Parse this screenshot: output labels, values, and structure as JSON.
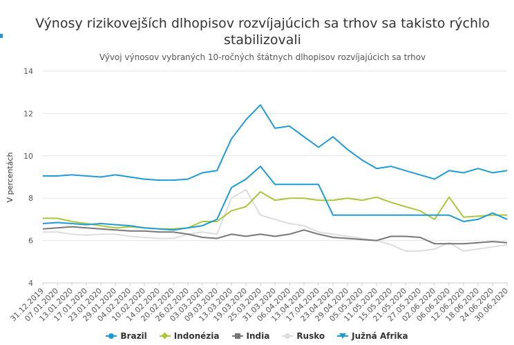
{
  "chart_data": {
    "type": "line",
    "title": "Výnosy rizikovejších dlhopisov rozvíjajúcich sa trhov sa takisto rýchlo stabilizovali",
    "subtitle": "Vývoj výnosov vybraných 10-ročných štátnych dlhopisov rozvíjajúcich sa trhov",
    "ylabel": "V percentách",
    "xlabel": "",
    "ylim": [
      4,
      14
    ],
    "yticks": [
      "4",
      "6",
      "8",
      "10",
      "12",
      "14"
    ],
    "grid": true,
    "legend_position": "bottom",
    "x": [
      "31.12.2019",
      "07.01.2020",
      "13.01.2020",
      "17.01.2020",
      "23.01.2020",
      "29.01.2020",
      "04.02.2020",
      "10.02.2020",
      "14.02.2020",
      "20.02.2020",
      "26.02.2020",
      "03.03.2020",
      "09.03.2020",
      "13.03.2020",
      "19.03.2020",
      "25.03.2020",
      "31.03.2020",
      "06.04.2020",
      "13.04.2020",
      "17.04.2020",
      "23.04.2020",
      "29.04.2020",
      "05.05.2020",
      "11.05.2020",
      "15.05.2020",
      "21.05.2020",
      "27.05.2020",
      "02.06.2020",
      "06.06.2020",
      "12.06.2020",
      "18.06.2020",
      "24.06.2020",
      "30.06.2020"
    ],
    "series": [
      {
        "name": "Brazil",
        "color": "#1e9bd7",
        "marker": "circle",
        "values": [
          6.8,
          6.85,
          6.8,
          6.75,
          6.8,
          6.75,
          6.7,
          6.6,
          6.55,
          6.5,
          6.6,
          6.7,
          7.0,
          8.5,
          8.9,
          9.5,
          8.65,
          8.65,
          8.65,
          8.65,
          7.2,
          7.2,
          7.2,
          7.2,
          7.2,
          7.2,
          7.2,
          7.2,
          7.2,
          6.9,
          7.0,
          7.3,
          7.0
        ]
      },
      {
        "name": "Indonézia",
        "color": "#a8c83a",
        "marker": "diamond",
        "values": [
          7.05,
          7.05,
          6.9,
          6.8,
          6.7,
          6.6,
          6.65,
          6.6,
          6.55,
          6.55,
          6.6,
          6.9,
          6.9,
          7.4,
          7.6,
          8.3,
          7.9,
          8.0,
          8.0,
          7.9,
          7.9,
          8.0,
          7.9,
          8.05,
          7.8,
          7.6,
          7.4,
          7.0,
          8.05,
          7.1,
          7.15,
          7.2,
          7.2
        ]
      },
      {
        "name": "India",
        "color": "#777777",
        "marker": "square",
        "values": [
          6.55,
          6.6,
          6.65,
          6.6,
          6.55,
          6.5,
          6.45,
          6.45,
          6.4,
          6.4,
          6.3,
          6.15,
          6.1,
          6.3,
          6.2,
          6.3,
          6.2,
          6.3,
          6.5,
          6.3,
          6.15,
          6.1,
          6.05,
          6.0,
          6.2,
          6.2,
          6.15,
          5.85,
          5.85,
          5.85,
          5.9,
          5.95,
          5.9
        ]
      },
      {
        "name": "Rusko",
        "color": "#dddddd",
        "marker": "circle",
        "values": [
          6.4,
          6.4,
          6.3,
          6.25,
          6.3,
          6.3,
          6.2,
          6.15,
          6.1,
          6.1,
          6.3,
          6.4,
          6.3,
          8.0,
          8.4,
          7.2,
          7.0,
          6.8,
          6.7,
          6.4,
          6.3,
          6.2,
          6.1,
          6.0,
          5.8,
          5.5,
          5.5,
          5.6,
          5.9,
          5.5,
          5.6,
          5.7,
          5.8
        ]
      },
      {
        "name": "Južná Afrika",
        "color": "#1e9bd7",
        "marker": "triangle",
        "values": [
          9.05,
          9.05,
          9.1,
          9.05,
          9.0,
          9.1,
          9.0,
          8.9,
          8.85,
          8.85,
          8.9,
          9.2,
          9.3,
          10.8,
          11.7,
          12.4,
          11.3,
          11.4,
          10.9,
          10.4,
          10.9,
          10.3,
          9.8,
          9.4,
          9.5,
          9.3,
          9.1,
          8.9,
          9.3,
          9.2,
          9.4,
          9.2,
          9.3
        ]
      }
    ]
  }
}
